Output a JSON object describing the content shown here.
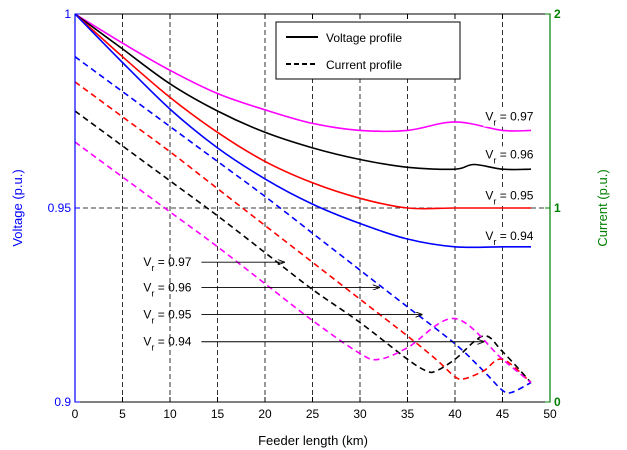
{
  "chart_data": {
    "type": "line",
    "xlabel": "Feeder length (km)",
    "ylabel_left": "Voltage (p.u.)",
    "ylabel_right": "Current (p.u.)",
    "xlim": [
      0,
      50
    ],
    "ylim_left": [
      0.9,
      1
    ],
    "ylim_right": [
      0,
      2
    ],
    "x_ticks": [
      "0",
      "5",
      "10",
      "15",
      "20",
      "25",
      "30",
      "35",
      "40",
      "45",
      "50"
    ],
    "y_left_ticks": [
      "0.9",
      "0.95",
      "1"
    ],
    "y_right_ticks": [
      "0",
      "1",
      "2"
    ],
    "grid": "vertical dashed lines at x ticks; horizontal dashed line at V = 0.95",
    "colors": {
      "left_axis": "#0000ff",
      "right_axis": "#008000",
      "magenta": "#ff00ff",
      "black": "#000000",
      "red": "#ff0000",
      "blue": "#0000ff"
    },
    "legend": {
      "position": "top-center",
      "entries": [
        {
          "label": "Voltage profile",
          "style": "solid"
        },
        {
          "label": "Current profile",
          "style": "dashed"
        }
      ]
    },
    "series": [
      {
        "axis": "left",
        "style": "solid",
        "color": "#ff00ff",
        "label": "0.97",
        "x": [
          0,
          5,
          10,
          15,
          20,
          25,
          30,
          35,
          40,
          45,
          48
        ],
        "y": [
          1.0,
          0.9925,
          0.9855,
          0.9795,
          0.9753,
          0.9718,
          0.97,
          0.97,
          0.9722,
          0.97,
          0.97
        ]
      },
      {
        "axis": "left",
        "style": "solid",
        "color": "#000000",
        "label": "0.96",
        "x": [
          0,
          5,
          10,
          15,
          20,
          25,
          30,
          35,
          40,
          42,
          45,
          48
        ],
        "y": [
          1.0,
          0.991,
          0.982,
          0.975,
          0.9695,
          0.9655,
          0.9625,
          0.9605,
          0.96,
          0.9612,
          0.96,
          0.96
        ]
      },
      {
        "axis": "left",
        "style": "solid",
        "color": "#ff0000",
        "label": "0.95",
        "x": [
          0,
          5,
          10,
          15,
          20,
          25,
          30,
          35,
          40,
          45,
          48
        ],
        "y": [
          1.0,
          0.989,
          0.9785,
          0.9695,
          0.962,
          0.9565,
          0.9525,
          0.95,
          0.95,
          0.95,
          0.95
        ]
      },
      {
        "axis": "left",
        "style": "solid",
        "color": "#0000ff",
        "label": "0.94",
        "x": [
          0,
          5,
          10,
          15,
          20,
          25,
          30,
          35,
          40,
          45,
          48
        ],
        "y": [
          1.0,
          0.9875,
          0.9755,
          0.9655,
          0.9575,
          0.951,
          0.946,
          0.942,
          0.94,
          0.94,
          0.94
        ]
      },
      {
        "axis": "right",
        "style": "dashed",
        "color": "#0000ff",
        "label": "0.94",
        "x": [
          0,
          5,
          10,
          15,
          20,
          25,
          30,
          35,
          40,
          43,
          45,
          46,
          48
        ],
        "y": [
          1.78,
          1.6,
          1.42,
          1.24,
          1.06,
          0.87,
          0.68,
          0.49,
          0.3,
          0.16,
          0.06,
          0.05,
          0.1
        ]
      },
      {
        "axis": "right",
        "style": "dashed",
        "color": "#ff0000",
        "label": "0.95",
        "x": [
          0,
          5,
          10,
          15,
          20,
          25,
          30,
          35,
          38,
          40,
          41,
          43,
          45,
          48
        ],
        "y": [
          1.65,
          1.47,
          1.29,
          1.1,
          0.91,
          0.72,
          0.53,
          0.34,
          0.22,
          0.13,
          0.12,
          0.16,
          0.22,
          0.1
        ]
      },
      {
        "axis": "right",
        "style": "dashed",
        "color": "#000000",
        "label": "0.96",
        "x": [
          0,
          5,
          10,
          15,
          20,
          25,
          30,
          35,
          37,
          38,
          40,
          43,
          45,
          48
        ],
        "y": [
          1.5,
          1.32,
          1.14,
          0.96,
          0.77,
          0.58,
          0.41,
          0.22,
          0.16,
          0.16,
          0.22,
          0.34,
          0.26,
          0.1
        ]
      },
      {
        "axis": "right",
        "style": "dashed",
        "color": "#ff00ff",
        "label": "0.97",
        "x": [
          0,
          5,
          10,
          15,
          20,
          25,
          30,
          32,
          35,
          40,
          45,
          48
        ],
        "y": [
          1.34,
          1.16,
          0.98,
          0.8,
          0.61,
          0.42,
          0.25,
          0.22,
          0.28,
          0.43,
          0.22,
          0.1
        ]
      }
    ],
    "annotations_voltage": [
      {
        "text_v": "V",
        "text_sub": "r",
        "text_val": " = 0.97",
        "x": 43.2,
        "y": 0.9725
      },
      {
        "text_v": "V",
        "text_sub": "r",
        "text_val": " = 0.96",
        "x": 43.2,
        "y": 0.9628
      },
      {
        "text_v": "V",
        "text_sub": "r",
        "text_val": " = 0.95",
        "x": 43.2,
        "y": 0.9522
      },
      {
        "text_v": "V",
        "text_sub": "r",
        "text_val": " = 0.94",
        "x": 43.2,
        "y": 0.9418
      }
    ],
    "annotations_current": [
      {
        "text_v": "V",
        "text_sub": "r",
        "text_val": " = 0.97",
        "x": 7.2,
        "y": 0.935,
        "arrow_to": 22.0
      },
      {
        "text_v": "V",
        "text_sub": "r",
        "text_val": " = 0.96",
        "x": 7.2,
        "y": 0.9285,
        "arrow_to": 32.0
      },
      {
        "text_v": "V",
        "text_sub": "r",
        "text_val": " = 0.95",
        "x": 7.2,
        "y": 0.9215,
        "arrow_to": 36.5
      },
      {
        "text_v": "V",
        "text_sub": "r",
        "text_val": " = 0.94",
        "x": 7.2,
        "y": 0.9145,
        "arrow_to": 43.0
      }
    ]
  }
}
